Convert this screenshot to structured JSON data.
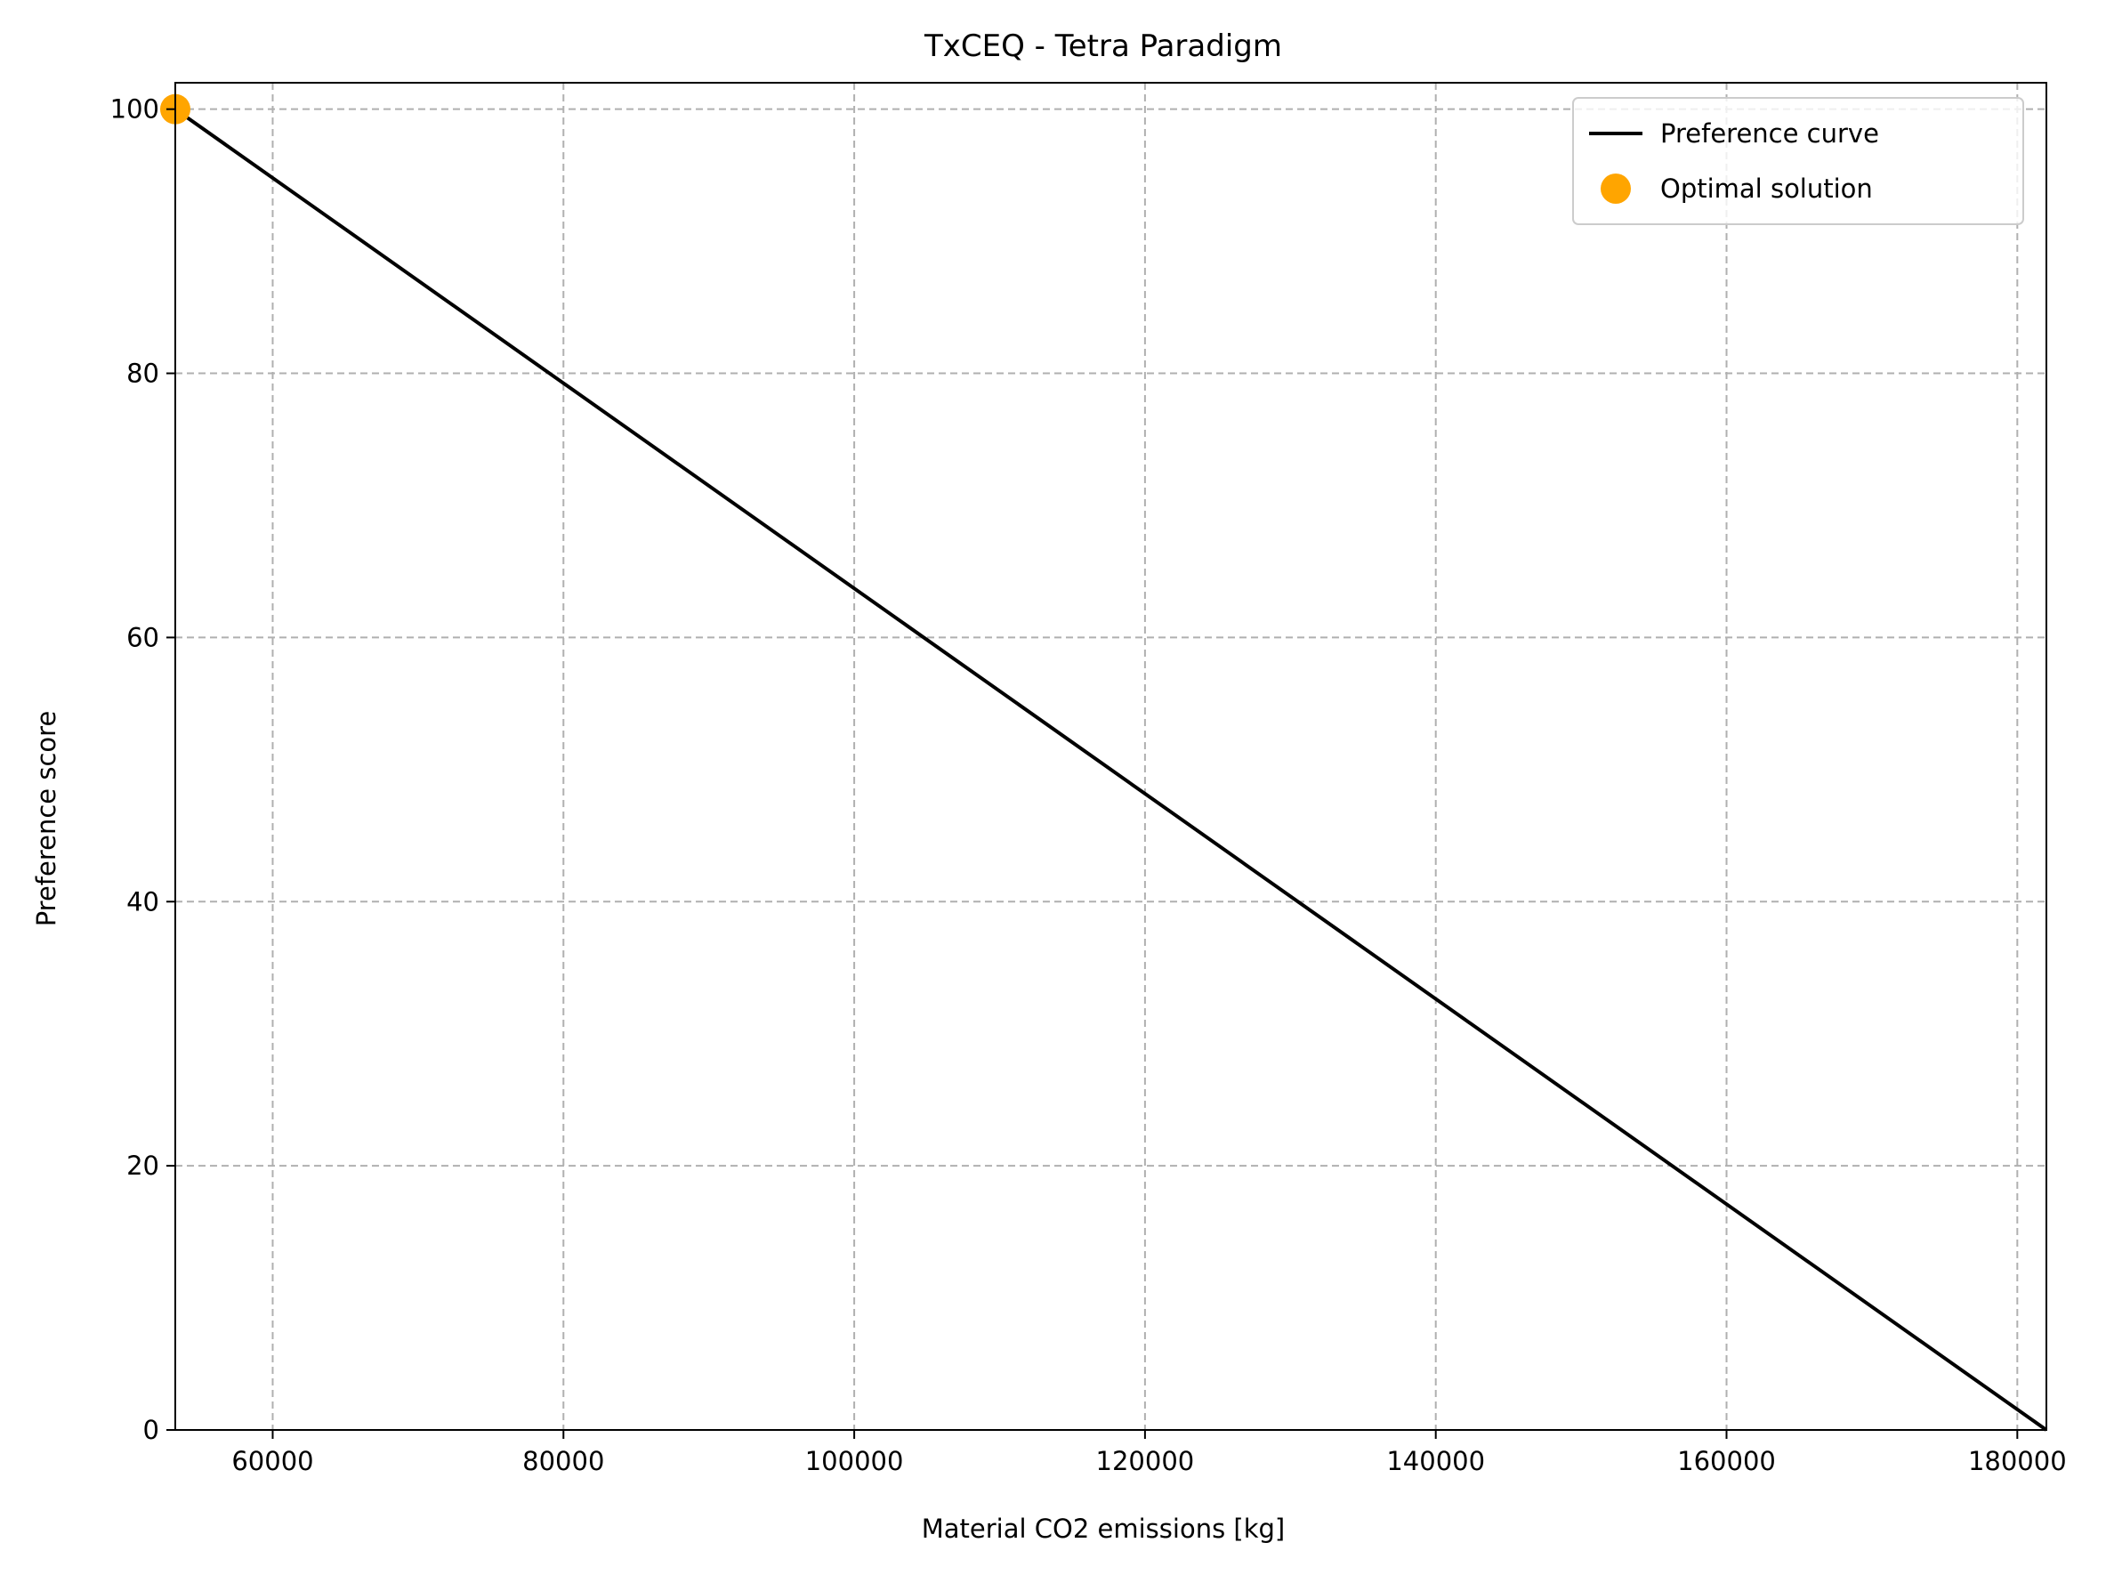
{
  "chart_data": {
    "type": "line",
    "title": "TxCEQ - Tetra Paradigm",
    "xlabel": "Material CO2 emissions [kg]",
    "ylabel": "Preference score",
    "xlim": [
      53300,
      182000
    ],
    "ylim": [
      0,
      102
    ],
    "x_ticks": [
      60000,
      80000,
      100000,
      120000,
      140000,
      160000,
      180000
    ],
    "y_ticks": [
      0,
      20,
      40,
      60,
      80,
      100
    ],
    "grid": true,
    "legend_position": "top-right",
    "series": [
      {
        "name": "Preference curve",
        "kind": "line",
        "color": "#000000",
        "x": [
          53300,
          182000
        ],
        "y": [
          100,
          0
        ]
      },
      {
        "name": "Optimal solution",
        "kind": "scatter",
        "color": "#FFA500",
        "x": [
          53300
        ],
        "y": [
          100
        ]
      }
    ]
  }
}
